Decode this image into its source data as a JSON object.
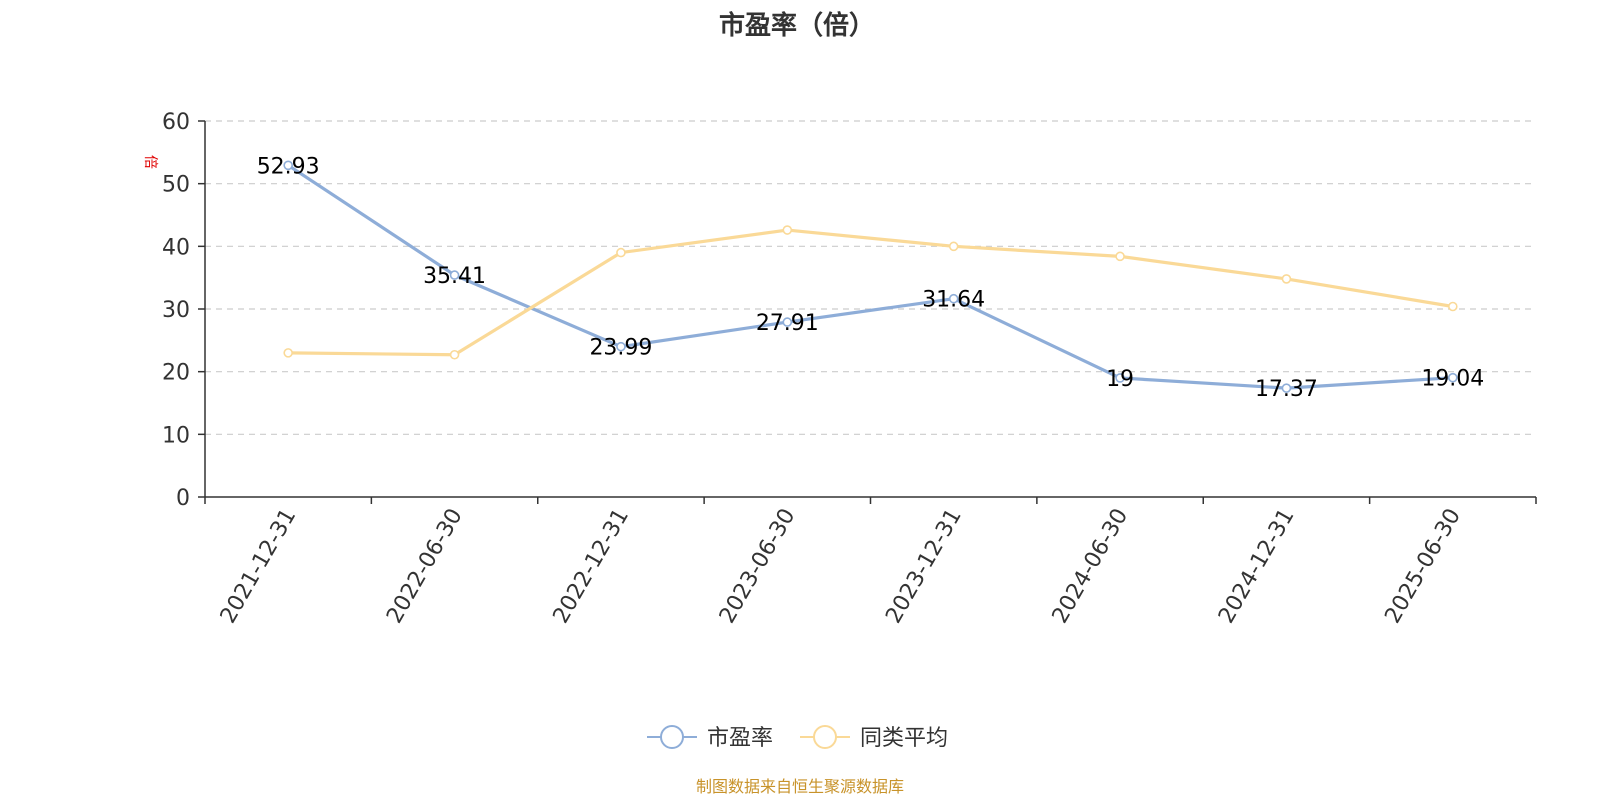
{
  "chart_data": {
    "type": "line",
    "title": "市盈率（倍）",
    "y_unit_label": "倍",
    "categories": [
      "2021-12-31",
      "2022-06-30",
      "2022-12-31",
      "2023-06-30",
      "2023-12-31",
      "2024-06-30",
      "2024-12-31",
      "2025-06-30"
    ],
    "series": [
      {
        "name": "市盈率",
        "color": "#8eadd8",
        "values": [
          52.93,
          35.41,
          23.99,
          27.91,
          31.64,
          19,
          17.37,
          19.04
        ],
        "labels": [
          "52.93",
          "35.41",
          "23.99",
          "27.91",
          "31.64",
          "19",
          "17.37",
          "19.04"
        ],
        "show_labels": true
      },
      {
        "name": "同类平均",
        "color": "#fad997",
        "values": [
          23.0,
          22.7,
          39.0,
          42.6,
          40.0,
          38.4,
          34.8,
          30.4
        ],
        "show_labels": false
      }
    ],
    "ylim": [
      0,
      60
    ],
    "yticks": [
      0,
      10,
      20,
      30,
      40,
      50,
      60
    ],
    "yticks_labels": [
      "0",
      "10",
      "20",
      "30",
      "40",
      "50",
      "60"
    ],
    "grid": true,
    "legend_position": "bottom-center",
    "source_note": "制图数据来自恒生聚源数据库",
    "source_color": "#c8932a",
    "unit_color": "#e00000"
  }
}
